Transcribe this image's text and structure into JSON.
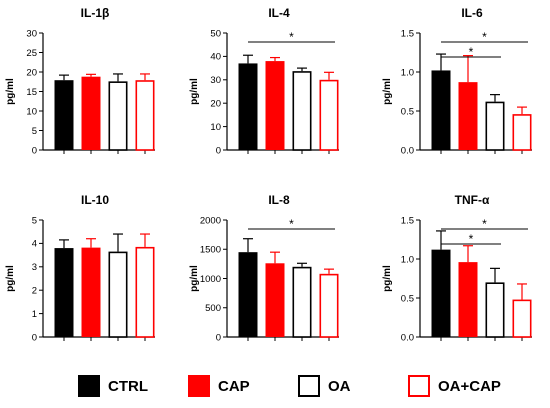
{
  "colors": {
    "CTRL": "#000000",
    "CAP": "#ff0000",
    "OA": "#000000",
    "OA+CAP": "#ff0000"
  },
  "legend": [
    {
      "label": "CTRL",
      "fill": "#000000",
      "stroke": "#000000"
    },
    {
      "label": "CAP",
      "fill": "#ff0000",
      "stroke": "#ff0000"
    },
    {
      "label": "OA",
      "fill": "#ffffff",
      "stroke": "#000000"
    },
    {
      "label": "OA+CAP",
      "fill": "#ffffff",
      "stroke": "#ff0000"
    }
  ],
  "chart_data": [
    {
      "type": "bar",
      "title": "IL-1β",
      "ylabel": "pg/ml",
      "ylim": [
        0,
        30
      ],
      "yticks": [
        "0",
        "5",
        "10",
        "15",
        "20",
        "25",
        "30"
      ],
      "categories": [
        "CTRL",
        "CAP",
        "OA",
        "OA+CAP"
      ],
      "values": [
        17.9,
        18.8,
        17.6,
        17.9
      ],
      "errors": [
        1.3,
        0.6,
        1.9,
        1.6
      ],
      "significance": []
    },
    {
      "type": "bar",
      "title": "IL-4",
      "ylabel": "pg/ml",
      "ylim": [
        0,
        50
      ],
      "yticks": [
        "0",
        "10",
        "20",
        "30",
        "40",
        "50"
      ],
      "categories": [
        "CTRL",
        "CAP",
        "OA",
        "OA+CAP"
      ],
      "values": [
        37,
        38,
        33.7,
        30
      ],
      "errors": [
        3.5,
        1.5,
        1.3,
        3.2
      ],
      "significance": [
        {
          "from": 0,
          "to": 3,
          "label": "*"
        }
      ]
    },
    {
      "type": "bar",
      "title": "IL-6",
      "ylabel": "pg/ml",
      "ylim": [
        0,
        1.5
      ],
      "yticks": [
        "0.0",
        "0.5",
        "1.0",
        "1.5"
      ],
      "categories": [
        "CTRL",
        "CAP",
        "OA",
        "OA+CAP"
      ],
      "values": [
        1.02,
        0.87,
        0.62,
        0.46
      ],
      "errors": [
        0.21,
        0.34,
        0.09,
        0.09
      ],
      "significance": [
        {
          "from": 0,
          "to": 3,
          "label": "*"
        },
        {
          "from": 0,
          "to": 2,
          "label": "*"
        }
      ]
    },
    {
      "type": "bar",
      "title": "IL-10",
      "ylabel": "pg/ml",
      "ylim": [
        0,
        5
      ],
      "yticks": [
        "0",
        "1",
        "2",
        "3",
        "4",
        "5"
      ],
      "categories": [
        "CTRL",
        "CAP",
        "OA",
        "OA+CAP"
      ],
      "values": [
        3.8,
        3.82,
        3.65,
        3.85
      ],
      "errors": [
        0.35,
        0.38,
        0.75,
        0.55
      ],
      "significance": []
    },
    {
      "type": "bar",
      "title": "IL-8",
      "ylabel": "pg/ml",
      "ylim": [
        0,
        2000
      ],
      "yticks": [
        "0",
        "500",
        "1000",
        "1500",
        "2000"
      ],
      "categories": [
        "CTRL",
        "CAP",
        "OA",
        "OA+CAP"
      ],
      "values": [
        1450,
        1260,
        1200,
        1080
      ],
      "errors": [
        230,
        190,
        60,
        80
      ],
      "significance": [
        {
          "from": 0,
          "to": 3,
          "label": "*"
        }
      ]
    },
    {
      "type": "bar",
      "title": "TNF-α",
      "ylabel": "pg/ml",
      "ylim": [
        0,
        1.5
      ],
      "yticks": [
        "0.0",
        "0.5",
        "1.0",
        "1.5"
      ],
      "categories": [
        "CTRL",
        "CAP",
        "OA",
        "OA+CAP"
      ],
      "values": [
        1.12,
        0.96,
        0.7,
        0.48
      ],
      "errors": [
        0.24,
        0.21,
        0.18,
        0.2
      ],
      "significance": [
        {
          "from": 0,
          "to": 3,
          "label": "*"
        },
        {
          "from": 0,
          "to": 2,
          "label": "*"
        }
      ]
    }
  ]
}
